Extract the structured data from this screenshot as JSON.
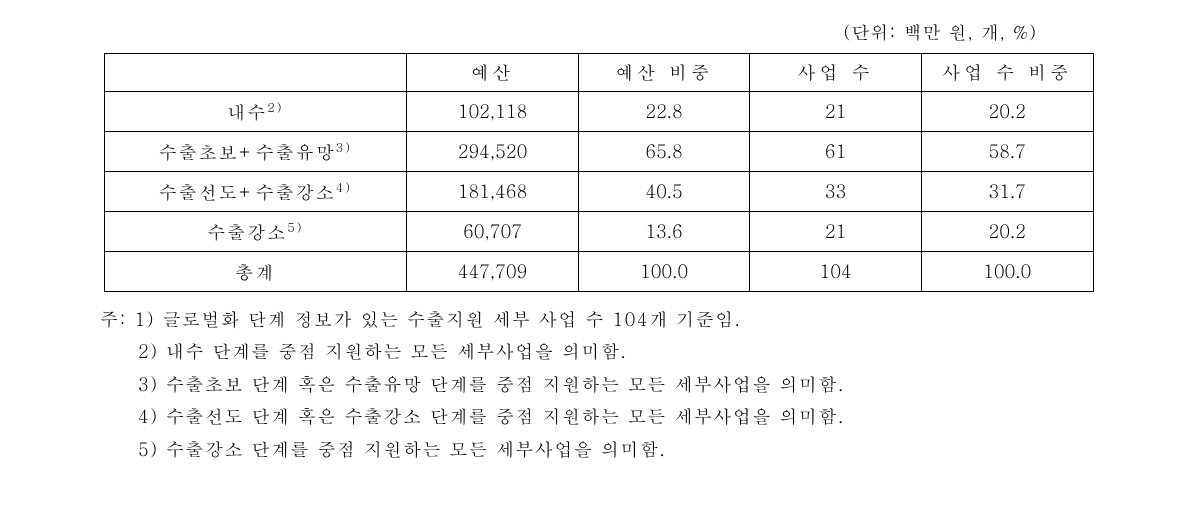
{
  "unit_label": "(단위: 백만 원, 개, %)",
  "table": {
    "columns": [
      "",
      "예산",
      "예산 비중",
      "사업 수",
      "사업 수 비중"
    ],
    "rows": [
      {
        "label": "내수",
        "sup": "2)",
        "budget": "102,118",
        "budget_pct": "22.8",
        "count": "21",
        "count_pct": "20.2"
      },
      {
        "label": "수출초보+수출유망",
        "sup": "3)",
        "budget": "294,520",
        "budget_pct": "65.8",
        "count": "61",
        "count_pct": "58.7"
      },
      {
        "label": "수출선도+수출강소",
        "sup": "4)",
        "budget": "181,468",
        "budget_pct": "40.5",
        "count": "33",
        "count_pct": "31.7"
      },
      {
        "label": "수출강소",
        "sup": "5)",
        "budget": "60,707",
        "budget_pct": "13.6",
        "count": "21",
        "count_pct": "20.2"
      },
      {
        "label": "총계",
        "sup": "",
        "budget": "447,709",
        "budget_pct": "100.0",
        "count": "104",
        "count_pct": "100.0"
      }
    ]
  },
  "notes": {
    "prefix": "주: ",
    "items": [
      "1) 글로벌화 단계 정보가 있는 수출지원 세부 사업 수 104개 기준임.",
      "2) 내수 단계를 중점 지원하는 모든 세부사업을 의미함.",
      "3) 수출초보 단계 혹은 수출유망 단계를 중점 지원하는 모든 세부사업을 의미함.",
      "4) 수출선도 단계 혹은 수출강소 단계를 중점 지원하는 모든 세부사업을 의미함.",
      "5) 수출강소 단계를 중점 지원하는 모든 세부사업을 의미함."
    ]
  }
}
